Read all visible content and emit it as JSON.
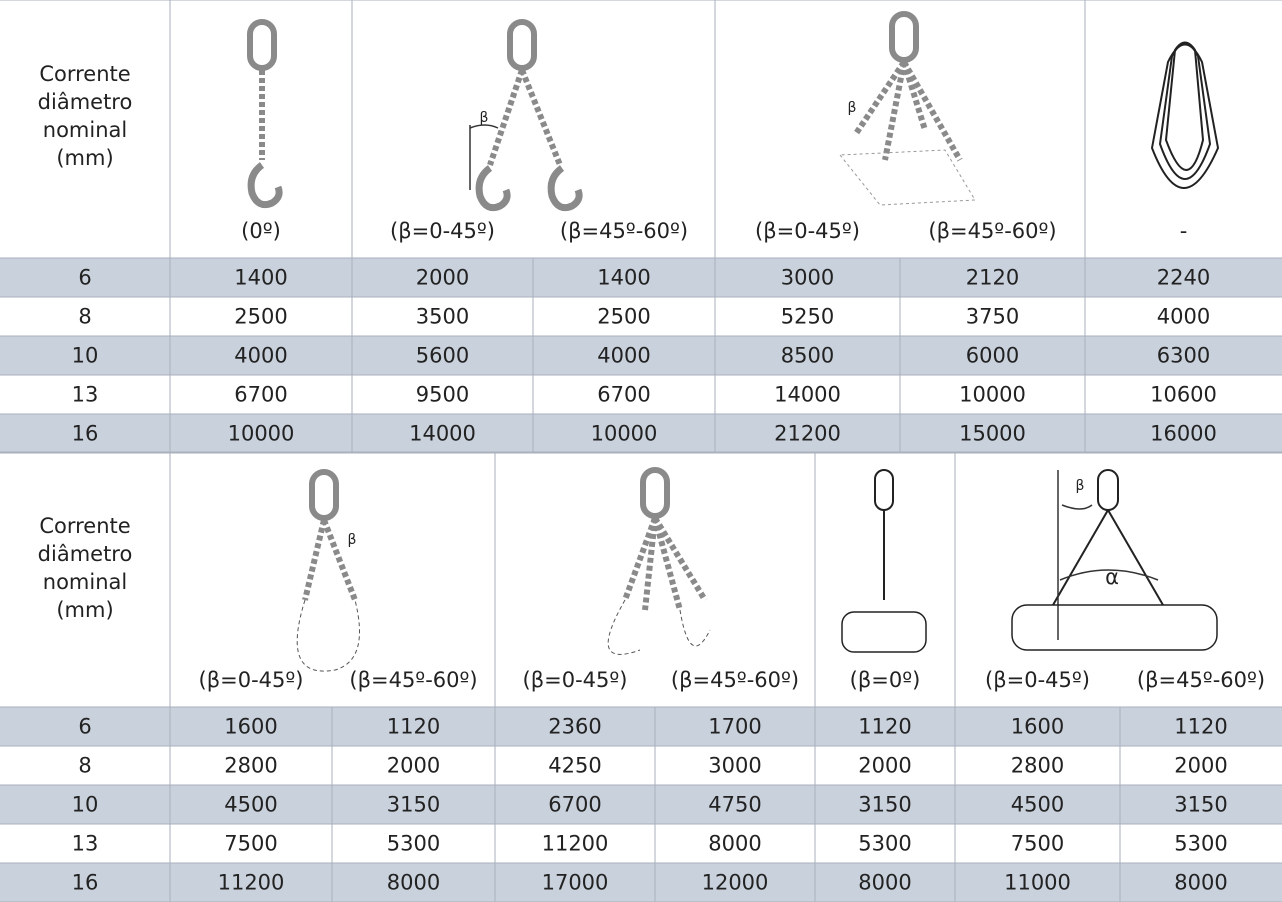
{
  "top_table": {
    "header": {
      "label": [
        "Corrente",
        "diâmetro",
        "nominal",
        "(mm)"
      ],
      "angles": [
        "(0º)",
        "(β=0-45º)",
        "(β=45º-60º)",
        "(β=0-45º)",
        "(β=45º-60º)",
        "-"
      ]
    },
    "rows": [
      [
        6,
        1400,
        2000,
        1400,
        3000,
        2120,
        2240
      ],
      [
        8,
        2500,
        3500,
        2500,
        5250,
        3750,
        4000
      ],
      [
        10,
        4000,
        5600,
        4000,
        8500,
        6000,
        6300
      ],
      [
        13,
        6700,
        9500,
        6700,
        14000,
        10000,
        10600
      ],
      [
        16,
        10000,
        14000,
        10000,
        21200,
        15000,
        16000
      ]
    ]
  },
  "bottom_table": {
    "header": {
      "label": [
        "Corrente",
        "diâmetro",
        "nominal",
        "(mm)"
      ],
      "angles": [
        "(β=0-45º)",
        "(β=45º-60º)",
        "(β=0-45º)",
        "(β=45º-60º)",
        "(β=0º)",
        "(β=0-45º)",
        "(β=45º-60º)"
      ]
    },
    "rows": [
      [
        6,
        1600,
        1120,
        2360,
        1700,
        1120,
        1600,
        1120
      ],
      [
        8,
        2800,
        2000,
        4250,
        3000,
        2000,
        2800,
        2000
      ],
      [
        10,
        4500,
        3150,
        6700,
        4750,
        3150,
        4500,
        3150
      ],
      [
        13,
        7500,
        5300,
        11200,
        8000,
        5300,
        7500,
        5300
      ],
      [
        16,
        11200,
        8000,
        17000,
        12000,
        8000,
        11000,
        8000
      ]
    ]
  },
  "figure_labels": {
    "beta": "β",
    "alpha": "α"
  }
}
